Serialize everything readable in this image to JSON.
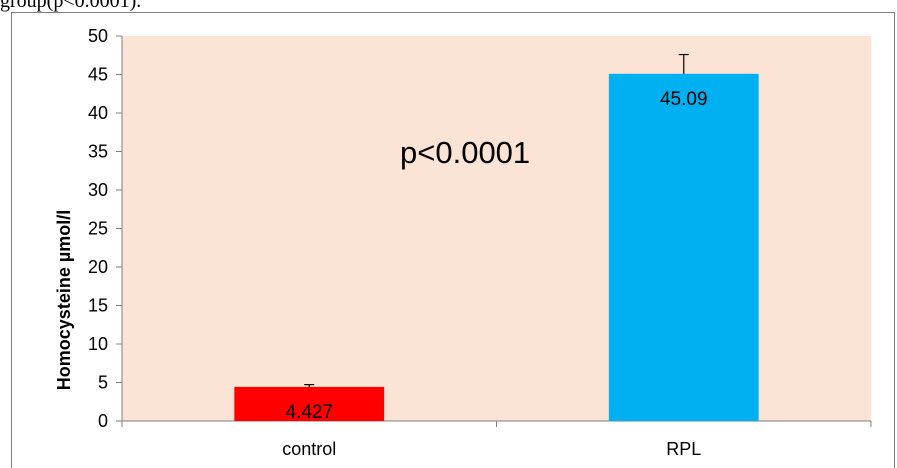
{
  "caption": "group(p<0.0001).",
  "chart_data": {
    "type": "bar",
    "categories": [
      "control",
      "RPL"
    ],
    "values": [
      4.427,
      45.09
    ],
    "error_bars": [
      0.3,
      2.5
    ],
    "data_labels": [
      "4.427",
      "45.09"
    ],
    "bar_colors": [
      "#ff0000",
      "#00b0f0"
    ],
    "plot_background": "#fbe4d5",
    "ylabel": "Homocysteine µmol/l",
    "xlabel": "",
    "ylim": [
      0,
      50
    ],
    "yticks": [
      0,
      5,
      10,
      15,
      20,
      25,
      30,
      35,
      40,
      45,
      50
    ],
    "annotation": "p<0.0001",
    "grid": false,
    "legend": "none"
  }
}
